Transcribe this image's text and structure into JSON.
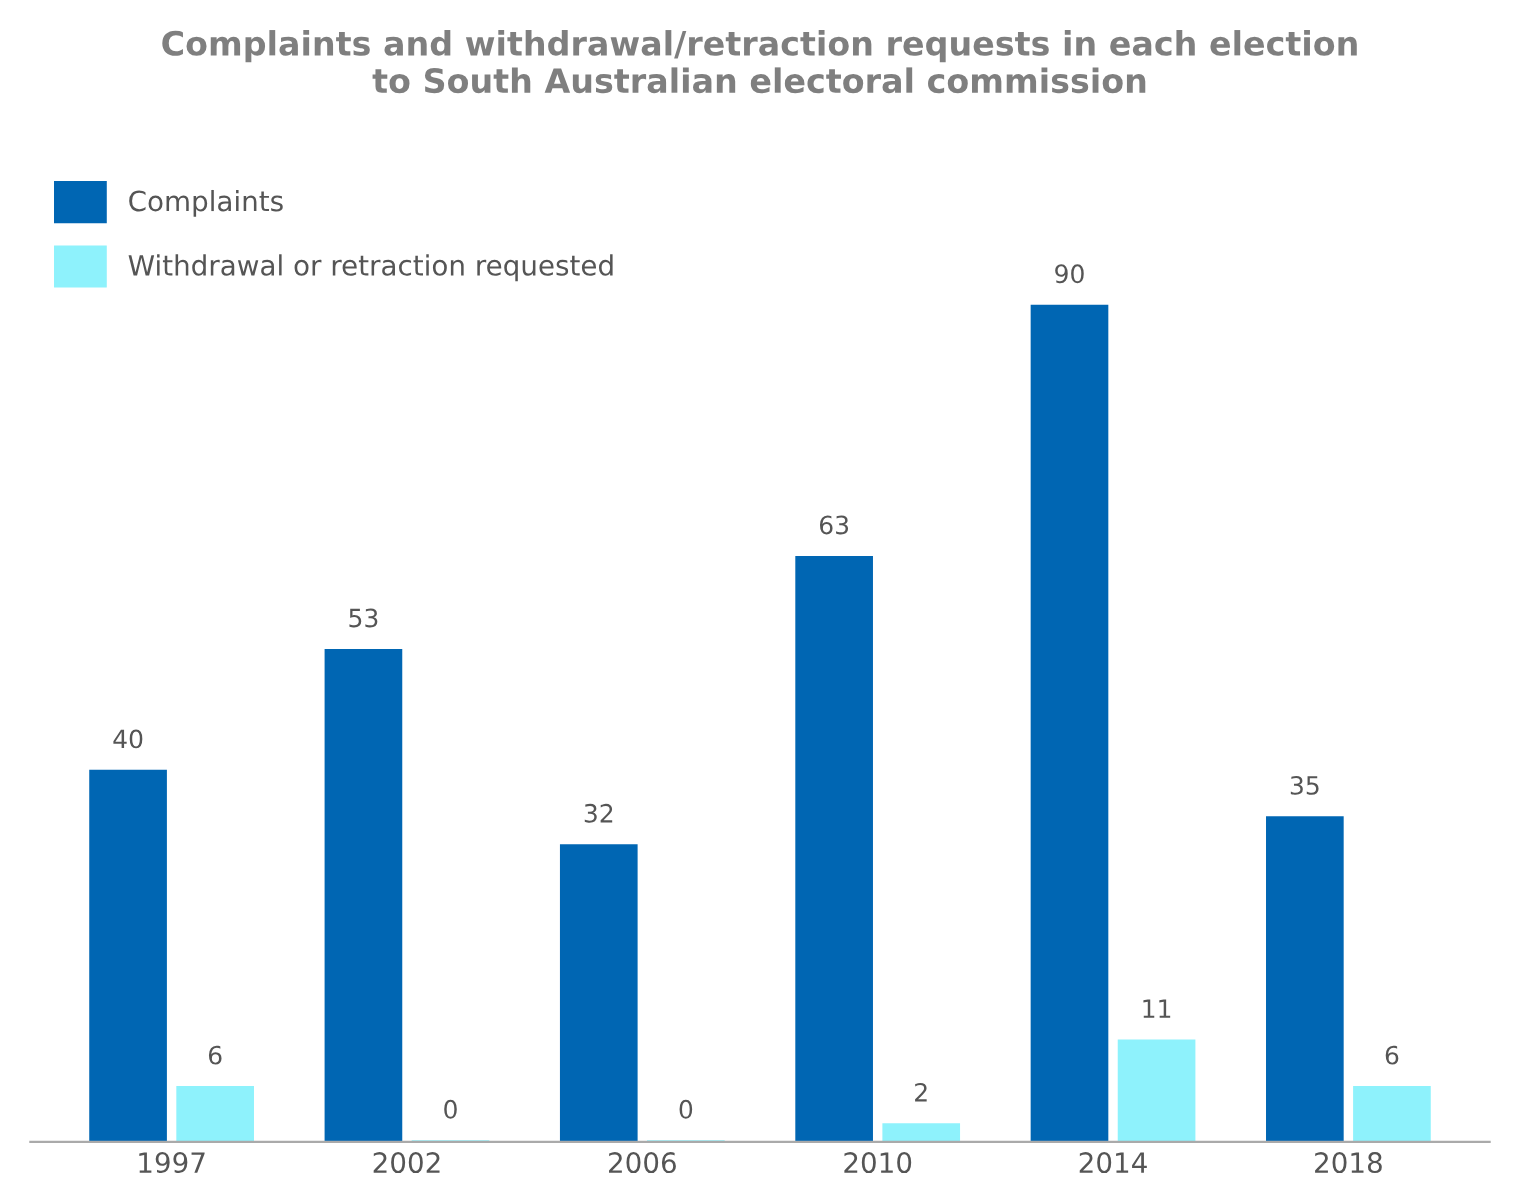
{
  "chart_data": {
    "type": "bar",
    "title": "Complaints and withdrawal/retraction requests in each election\nto South Australian electoral commission",
    "categories": [
      "1997",
      "2002",
      "2006",
      "2010",
      "2014",
      "2018"
    ],
    "series": [
      {
        "name": "Complaints",
        "color": "#0066b3",
        "values": [
          40,
          53,
          32,
          63,
          90,
          35
        ]
      },
      {
        "name": "Withdrawal or retraction requested",
        "color": "#8ef2fc",
        "values": [
          6,
          0,
          0,
          2,
          11,
          6
        ]
      }
    ],
    "data_labels": true,
    "legend": "top left",
    "grid": false,
    "tick_labels": "x"
  }
}
